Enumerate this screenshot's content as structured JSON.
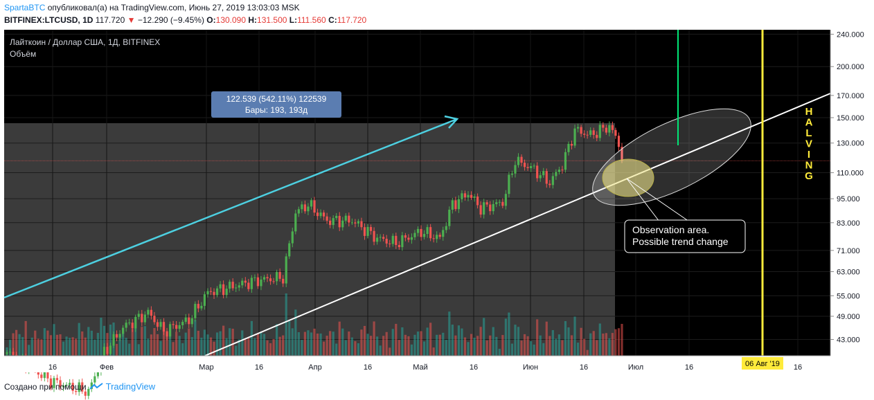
{
  "header": {
    "author": "SpartaBTC",
    "published_text": "опубликовал(а) на TradingView.com, Июнь 27, 2019 13:03:03 MSK",
    "symbol": "BITFINEX:LTCUSD, 1D",
    "last": "117.720",
    "change": "−12.290 (−9.45%)",
    "o_label": "O:",
    "o_value": "130.090",
    "h_label": "H:",
    "h_value": "131.500",
    "l_label": "L:",
    "l_value": "111.560",
    "c_label": "C:",
    "c_value": "117.720"
  },
  "legend": {
    "title": "Лайткоин / Доллар США, 1Д, BITFINEX",
    "volume": "Объём"
  },
  "measure": {
    "line1": "122.539 (542.11%) 122539",
    "line2": "Бары: 193, 193д"
  },
  "annotation": {
    "line1": "Observation area.",
    "line2": "Possible trend change"
  },
  "halving_text": "HALVING",
  "date_marker": "06 Авг '19",
  "footer": {
    "created_with": "Создано при помощи",
    "brand": "TradingView"
  },
  "colors": {
    "up": "#26a69a",
    "up_candle": "#4caf50",
    "down": "#ef5350",
    "cyan": "#4dd0e1",
    "yellow": "#ffeb3b",
    "green": "#00e676",
    "measure_box": "#5b7db1"
  },
  "chart_data": {
    "type": "candlestick",
    "scale": "log",
    "title": "Лайткоин / Доллар США, 1Д, BITFINEX",
    "y_ticks": [
      "240.000",
      "200.000",
      "170.000",
      "150.000",
      "130.000",
      "110.000",
      "95.000",
      "83.000",
      "71.000",
      "63.000",
      "55.000",
      "49.000",
      "43.000"
    ],
    "x_ticks": [
      "16",
      "Фев",
      "Мар",
      "16",
      "Апр",
      "16",
      "Май",
      "16",
      "Июн",
      "16",
      "Июл",
      "16",
      "Авг",
      "16"
    ],
    "last_price": 117.72,
    "anchors": [
      {
        "day": 0,
        "price": 40
      },
      {
        "day": 14,
        "price": 34
      },
      {
        "day": 26,
        "price": 32
      },
      {
        "day": 31,
        "price": 40
      },
      {
        "day": 37,
        "price": 46
      },
      {
        "day": 45,
        "price": 50
      },
      {
        "day": 50,
        "price": 45
      },
      {
        "day": 58,
        "price": 48
      },
      {
        "day": 64,
        "price": 56
      },
      {
        "day": 72,
        "price": 58
      },
      {
        "day": 80,
        "price": 60
      },
      {
        "day": 88,
        "price": 61
      },
      {
        "day": 92,
        "price": 88
      },
      {
        "day": 96,
        "price": 92
      },
      {
        "day": 102,
        "price": 84
      },
      {
        "day": 110,
        "price": 84
      },
      {
        "day": 118,
        "price": 76
      },
      {
        "day": 124,
        "price": 74
      },
      {
        "day": 132,
        "price": 79
      },
      {
        "day": 138,
        "price": 76
      },
      {
        "day": 142,
        "price": 92
      },
      {
        "day": 147,
        "price": 98
      },
      {
        "day": 151,
        "price": 90
      },
      {
        "day": 158,
        "price": 93
      },
      {
        "day": 162,
        "price": 118
      },
      {
        "day": 168,
        "price": 112
      },
      {
        "day": 173,
        "price": 104
      },
      {
        "day": 177,
        "price": 115
      },
      {
        "day": 181,
        "price": 140
      },
      {
        "day": 186,
        "price": 136
      },
      {
        "day": 192,
        "price": 143
      },
      {
        "day": 195,
        "price": 130
      },
      {
        "day": 196,
        "price": 117.72
      }
    ]
  }
}
